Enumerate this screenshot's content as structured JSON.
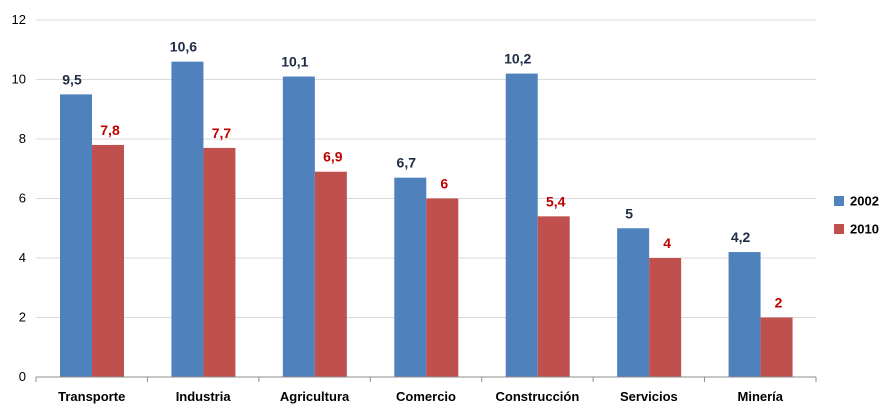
{
  "chart_data": {
    "type": "bar",
    "categories": [
      "Transporte",
      "Industria",
      "Agricultura",
      "Comercio",
      "Construcción",
      "Servicios",
      "Minería"
    ],
    "series": [
      {
        "name": "2002",
        "values": [
          9.5,
          10.6,
          10.1,
          6.7,
          10.2,
          5,
          4.2
        ],
        "labels": [
          "9,5",
          "10,6",
          "10,1",
          "6,7",
          "10,2",
          "5",
          "4,2"
        ],
        "color": "#4f81bd",
        "label_color": "#1f2a44"
      },
      {
        "name": "2010",
        "values": [
          7.8,
          7.7,
          6.9,
          6,
          5.4,
          4,
          2
        ],
        "labels": [
          "7,8",
          "7,7",
          "6,9",
          "6",
          "5,4",
          "4",
          "2"
        ],
        "color": "#c0504d",
        "label_color": "#c00000"
      }
    ],
    "y_ticks": [
      "0",
      "2",
      "4",
      "6",
      "8",
      "10",
      "12"
    ],
    "ylim": [
      0,
      12
    ],
    "grid": true,
    "legend_position": "right",
    "title": "",
    "xlabel": "",
    "ylabel": ""
  }
}
